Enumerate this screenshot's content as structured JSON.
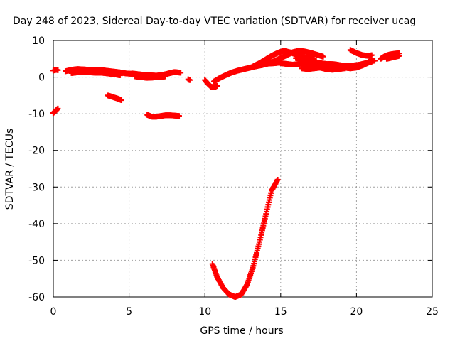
{
  "chart_data": {
    "type": "scatter",
    "title": "Day 248 of 2023, Sidereal Day-to-day VTEC variation (SDTVAR) for receiver ucag",
    "xlabel": "GPS time / hours",
    "ylabel": "SDTVAR / TECUs",
    "xlim": [
      0,
      25
    ],
    "ylim": [
      -60,
      10
    ],
    "xticks": [
      0,
      5,
      10,
      15,
      20,
      25
    ],
    "yticks": [
      10,
      0,
      -10,
      -20,
      -30,
      -40,
      -50,
      -60
    ],
    "grid": true,
    "marker_color": "#ff0000",
    "series": [
      {
        "name": "sdtvar",
        "segments": [
          {
            "x": [
              0.0,
              0.1,
              0.2,
              0.3
            ],
            "y": [
              1.8,
              1.9,
              2.0,
              1.9
            ]
          },
          {
            "x": [
              0.0,
              0.1,
              0.2,
              0.3
            ],
            "y": [
              -9.8,
              -9.4,
              -9.0,
              -8.6
            ]
          },
          {
            "x": [
              0.8,
              1.2,
              1.6,
              2.0,
              2.4,
              2.8,
              3.2,
              3.6,
              4.0,
              4.4,
              4.8,
              5.2
            ],
            "y": [
              1.6,
              2.0,
              2.2,
              2.1,
              2.0,
              2.0,
              1.9,
              1.7,
              1.5,
              1.3,
              1.0,
              0.9
            ]
          },
          {
            "x": [
              1.2,
              1.6,
              2.0,
              2.4,
              2.8,
              3.2,
              3.6,
              4.0,
              4.4
            ],
            "y": [
              1.1,
              1.3,
              1.4,
              1.3,
              1.2,
              1.2,
              1.0,
              0.8,
              0.5
            ]
          },
          {
            "x": [
              5.2,
              5.6,
              6.0,
              6.4,
              6.8,
              7.2,
              7.6,
              8.0,
              8.4
            ],
            "y": [
              1.0,
              0.8,
              0.6,
              0.5,
              0.4,
              0.6,
              1.0,
              1.4,
              1.2
            ]
          },
          {
            "x": [
              5.4,
              5.8,
              6.2,
              6.6,
              7.0,
              7.4
            ],
            "y": [
              0.2,
              0.0,
              -0.2,
              -0.1,
              0.0,
              0.2
            ]
          },
          {
            "x": [
              3.6,
              3.9,
              4.2,
              4.5
            ],
            "y": [
              -5.0,
              -5.4,
              -5.8,
              -6.3
            ]
          },
          {
            "x": [
              6.2,
              6.5,
              6.8,
              7.1,
              7.4,
              7.7,
              8.0,
              8.3
            ],
            "y": [
              -10.3,
              -10.8,
              -10.8,
              -10.6,
              -10.4,
              -10.4,
              -10.5,
              -10.6
            ]
          },
          {
            "x": [
              8.9,
              9.0
            ],
            "y": [
              -0.6,
              -0.8
            ]
          },
          {
            "x": [
              10.0,
              10.2,
              10.4,
              10.6,
              10.8
            ],
            "y": [
              -0.8,
              -1.8,
              -2.6,
              -2.8,
              -2.4
            ]
          },
          {
            "x": [
              10.5,
              10.8,
              11.2,
              11.6,
              12.0,
              12.4,
              12.8,
              13.2,
              13.6,
              14.0,
              14.4,
              14.8
            ],
            "y": [
              -51.0,
              -54.5,
              -57.5,
              -59.3,
              -60.0,
              -59.3,
              -56.5,
              -51.5,
              -45.0,
              -38.0,
              -31.0,
              -28.0
            ]
          },
          {
            "x": [
              10.6,
              11.0,
              11.4,
              11.8,
              12.2,
              12.6,
              13.0,
              13.4,
              13.8,
              14.2,
              14.6,
              15.0
            ],
            "y": [
              -1.2,
              -0.2,
              0.6,
              1.3,
              1.8,
              2.2,
              2.6,
              3.0,
              3.4,
              3.7,
              3.8,
              4.0
            ]
          },
          {
            "x": [
              13.0,
              13.4,
              13.8,
              14.2,
              14.6,
              15.0,
              15.4,
              15.8,
              16.2,
              16.6,
              17.0,
              17.4,
              17.8
            ],
            "y": [
              2.6,
              3.0,
              3.3,
              3.8,
              4.4,
              5.2,
              6.0,
              6.8,
              7.2,
              7.0,
              6.6,
              6.1,
              5.6
            ]
          },
          {
            "x": [
              13.2,
              13.6,
              14.0,
              14.4,
              14.8,
              15.2,
              15.6,
              16.0,
              16.4,
              16.8,
              17.2
            ],
            "y": [
              3.0,
              3.8,
              4.8,
              5.8,
              6.6,
              7.2,
              6.8,
              6.2,
              5.6,
              5.2,
              5.0
            ]
          },
          {
            "x": [
              15.0,
              15.4,
              15.8,
              16.2,
              16.6,
              17.0,
              17.4,
              17.8,
              18.2,
              18.6,
              19.0,
              19.4,
              19.8,
              20.2,
              20.6,
              21.0
            ],
            "y": [
              3.8,
              3.6,
              3.4,
              3.6,
              3.8,
              3.5,
              3.3,
              3.4,
              3.6,
              3.5,
              3.2,
              3.0,
              3.2,
              3.4,
              3.8,
              4.2
            ]
          },
          {
            "x": [
              16.0,
              16.4,
              16.8,
              17.2,
              17.6,
              18.0,
              18.4,
              18.8,
              19.2,
              19.6,
              20.0,
              20.4,
              20.8
            ],
            "y": [
              5.2,
              5.0,
              4.6,
              4.2,
              3.8,
              3.6,
              3.4,
              3.1,
              2.6,
              2.4,
              2.6,
              3.2,
              4.0
            ]
          },
          {
            "x": [
              16.4,
              16.8,
              17.2,
              17.6,
              18.0,
              18.4,
              18.8,
              19.2
            ],
            "y": [
              2.4,
              2.2,
              2.4,
              2.6,
              2.2,
              2.0,
              2.2,
              2.4
            ]
          },
          {
            "x": [
              19.6,
              20.0,
              20.4,
              20.8,
              21.0
            ],
            "y": [
              7.4,
              6.6,
              6.0,
              5.8,
              6.0
            ]
          },
          {
            "x": [
              20.8,
              21.0,
              21.2
            ],
            "y": [
              4.2,
              4.4,
              4.5
            ]
          },
          {
            "x": [
              21.6,
              21.9,
              22.2,
              22.5,
              22.8
            ],
            "y": [
              5.0,
              5.8,
              6.2,
              6.4,
              6.5
            ]
          },
          {
            "x": [
              22.0,
              22.3,
              22.6,
              22.8
            ],
            "y": [
              5.0,
              5.3,
              5.6,
              5.8
            ]
          }
        ]
      }
    ]
  }
}
